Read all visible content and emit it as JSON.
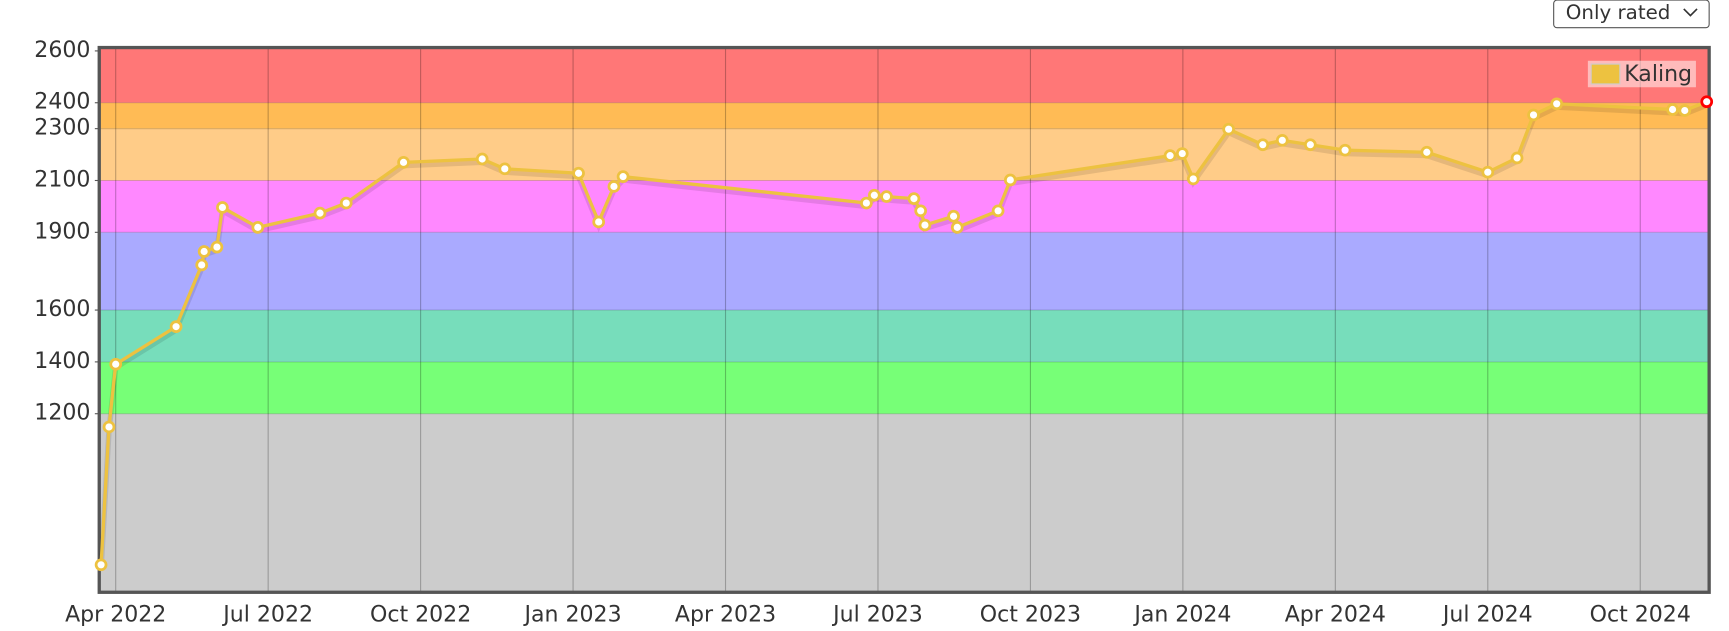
{
  "controls": {
    "filter": "Only rated"
  },
  "chart_data": {
    "type": "line",
    "x": [
      2022.226,
      2022.239,
      2022.25,
      2022.349,
      2022.391,
      2022.395,
      2022.416,
      2022.425,
      2022.483,
      2022.585,
      2022.628,
      2022.722,
      2022.851,
      2022.888,
      2023.009,
      2023.042,
      2023.067,
      2023.082,
      2023.481,
      2023.494,
      2023.514,
      2023.559,
      2023.57,
      2023.577,
      2023.624,
      2023.63,
      2023.697,
      2023.717,
      2023.979,
      2023.999,
      2024.017,
      2024.075,
      2024.131,
      2024.163,
      2024.209,
      2024.266,
      2024.4,
      2024.5,
      2024.548,
      2024.575,
      2024.613,
      2024.803,
      2024.823,
      2024.859
    ],
    "series": [
      {
        "name": "Kaling",
        "color": "#edc240",
        "last_point_color": "#ff0000",
        "values": [
          617,
          1149,
          1391,
          1536,
          1774,
          1826,
          1843,
          1996,
          1919,
          1974,
          2013,
          2170,
          2183,
          2145,
          2128,
          1940,
          2077,
          2115,
          2013,
          2043,
          2038,
          2030,
          1983,
          1928,
          1962,
          1919,
          1983,
          2102,
          2196,
          2204,
          2106,
          2298,
          2238,
          2255,
          2238,
          2217,
          2209,
          2132,
          2187,
          2353,
          2396,
          2374,
          2370,
          2404
        ]
      }
    ],
    "xlim": [
      2022.223,
      2024.863
    ],
    "xticks": [
      {
        "value": 2022.25,
        "label": "Apr 2022"
      },
      {
        "value": 2022.5,
        "label": "Jul 2022"
      },
      {
        "value": 2022.75,
        "label": "Oct 2022"
      },
      {
        "value": 2023.0,
        "label": "Jan 2023"
      },
      {
        "value": 2023.25,
        "label": "Apr 2023"
      },
      {
        "value": 2023.5,
        "label": "Jul 2023"
      },
      {
        "value": 2023.75,
        "label": "Oct 2023"
      },
      {
        "value": 2024.0,
        "label": "Jan 2024"
      },
      {
        "value": 2024.25,
        "label": "Apr 2024"
      },
      {
        "value": 2024.5,
        "label": "Jul 2024"
      },
      {
        "value": 2024.75,
        "label": "Oct 2024"
      }
    ],
    "ylim": [
      511,
      2613
    ],
    "yticks": [
      1200,
      1400,
      1600,
      1900,
      2100,
      2300,
      2400,
      2600
    ],
    "band_edges": [
      1200,
      1400,
      1600,
      1900,
      2100,
      2300,
      2400
    ],
    "band_colors": [
      "#cccccc",
      "#77ff77",
      "#77ddbb",
      "#aaaaff",
      "#ff88ff",
      "#ffcc88",
      "#ffbb55",
      "#ff7777"
    ],
    "grid": true,
    "legend": "top-right"
  }
}
